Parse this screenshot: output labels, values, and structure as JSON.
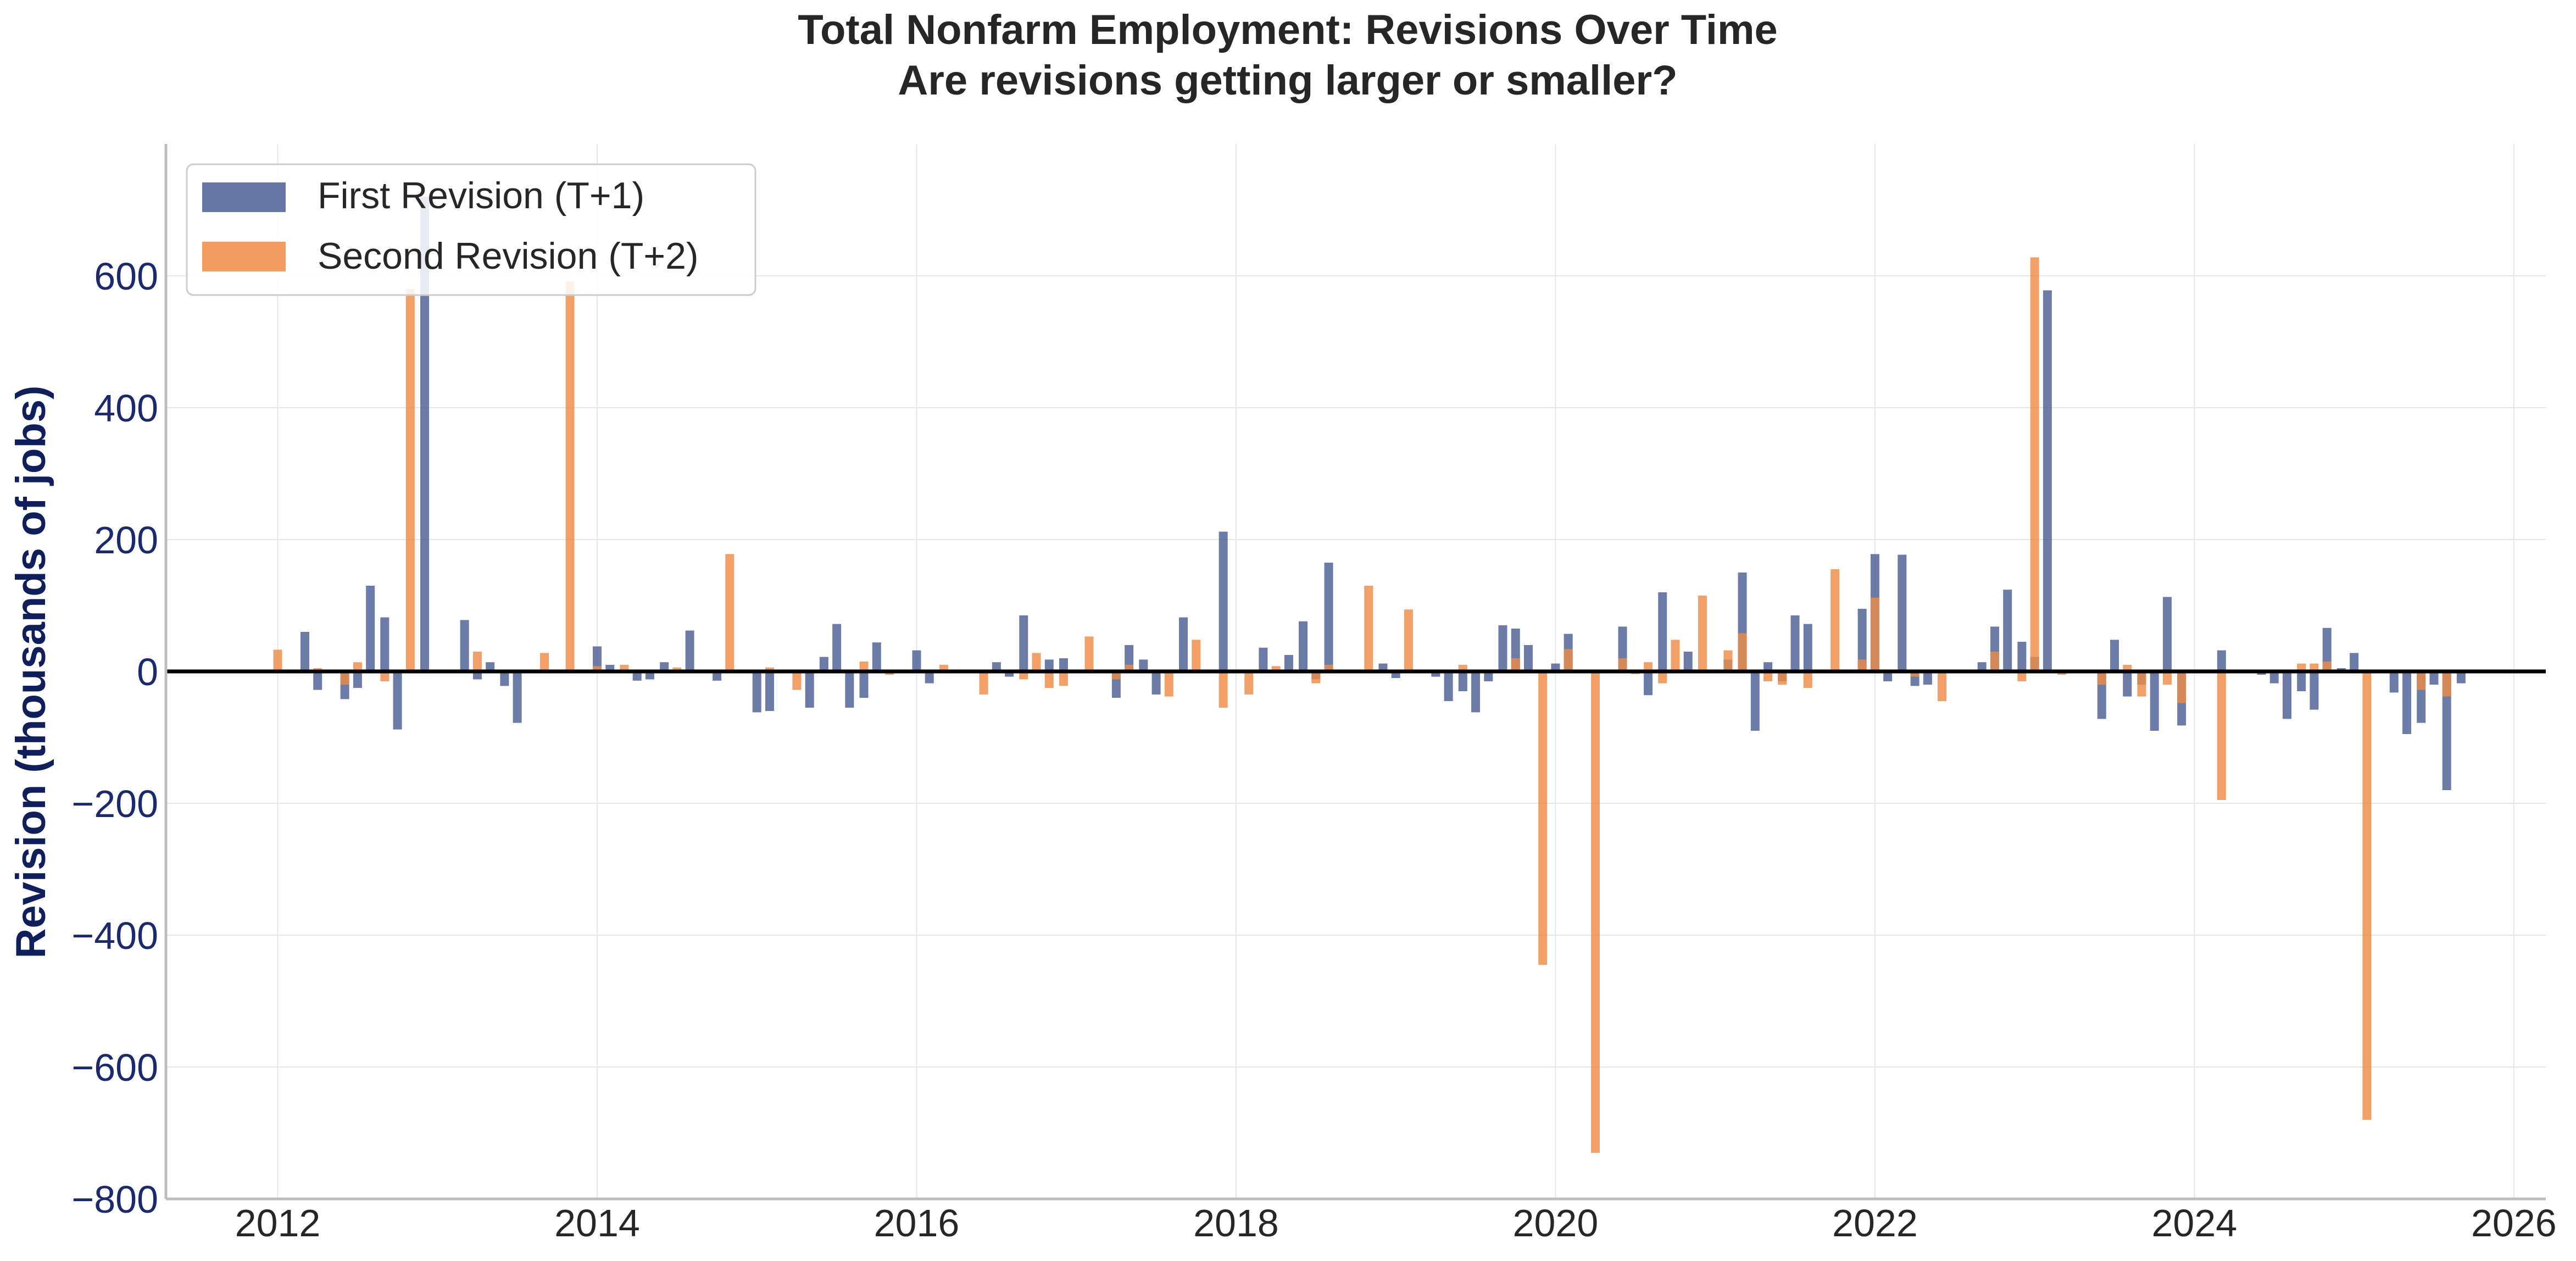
{
  "chart_data": {
    "type": "bar",
    "title": "Total Nonfarm Employment: Revisions Over Time",
    "subtitle": "Are revisions getting larger or smaller?",
    "xlabel": "",
    "ylabel": "Revision (thousands of jobs)",
    "xlim": [
      2011.3,
      2026.2
    ],
    "ylim": [
      -800,
      800
    ],
    "xticks": [
      2012,
      2014,
      2016,
      2018,
      2020,
      2022,
      2024,
      2026
    ],
    "yticks": [
      -800,
      -600,
      -400,
      -200,
      0,
      200,
      400,
      600
    ],
    "ytick_labels": [
      "−800",
      "−600",
      "−400",
      "−200",
      "0",
      "200",
      "400",
      "600"
    ],
    "grid": true,
    "zero_line": true,
    "legend_position": "top-left",
    "colors": {
      "first": "#4c5f93",
      "second": "#ee8c47",
      "axis_text": "#1a2a6c",
      "zero_line": "#000000"
    },
    "series": [
      {
        "name": "First Revision (T+1)",
        "points": [
          [
            2012.17,
            60
          ],
          [
            2012.25,
            -28
          ],
          [
            2012.42,
            -42
          ],
          [
            2012.5,
            -25
          ],
          [
            2012.58,
            130
          ],
          [
            2012.67,
            82
          ],
          [
            2012.75,
            -88
          ],
          [
            2012.92,
            720
          ],
          [
            2013.17,
            78
          ],
          [
            2013.25,
            -12
          ],
          [
            2013.33,
            14
          ],
          [
            2013.42,
            -22
          ],
          [
            2013.5,
            -78
          ],
          [
            2014.0,
            38
          ],
          [
            2014.08,
            10
          ],
          [
            2014.25,
            -14
          ],
          [
            2014.33,
            -12
          ],
          [
            2014.42,
            14
          ],
          [
            2014.58,
            62
          ],
          [
            2014.75,
            -14
          ],
          [
            2015.0,
            -62
          ],
          [
            2015.08,
            -60
          ],
          [
            2015.33,
            -55
          ],
          [
            2015.42,
            22
          ],
          [
            2015.5,
            72
          ],
          [
            2015.58,
            -55
          ],
          [
            2015.67,
            -40
          ],
          [
            2015.75,
            44
          ],
          [
            2016.0,
            32
          ],
          [
            2016.08,
            -18
          ],
          [
            2016.5,
            14
          ],
          [
            2016.58,
            -8
          ],
          [
            2016.67,
            85
          ],
          [
            2016.83,
            18
          ],
          [
            2016.92,
            20
          ],
          [
            2017.25,
            -40
          ],
          [
            2017.33,
            40
          ],
          [
            2017.42,
            18
          ],
          [
            2017.5,
            -35
          ],
          [
            2017.67,
            82
          ],
          [
            2017.92,
            212
          ],
          [
            2018.17,
            36
          ],
          [
            2018.33,
            25
          ],
          [
            2018.42,
            76
          ],
          [
            2018.5,
            -12
          ],
          [
            2018.58,
            165
          ],
          [
            2018.92,
            12
          ],
          [
            2019.0,
            -10
          ],
          [
            2019.25,
            -8
          ],
          [
            2019.33,
            -45
          ],
          [
            2019.42,
            -30
          ],
          [
            2019.5,
            -62
          ],
          [
            2019.58,
            -15
          ],
          [
            2019.67,
            70
          ],
          [
            2019.75,
            65
          ],
          [
            2019.83,
            40
          ],
          [
            2020.0,
            12
          ],
          [
            2020.08,
            57
          ],
          [
            2020.42,
            68
          ],
          [
            2020.58,
            -36
          ],
          [
            2020.67,
            120
          ],
          [
            2020.83,
            30
          ],
          [
            2021.08,
            18
          ],
          [
            2021.17,
            150
          ],
          [
            2021.25,
            -90
          ],
          [
            2021.33,
            14
          ],
          [
            2021.42,
            -15
          ],
          [
            2021.5,
            85
          ],
          [
            2021.58,
            72
          ],
          [
            2021.92,
            95
          ],
          [
            2022.0,
            178
          ],
          [
            2022.08,
            -15
          ],
          [
            2022.17,
            177
          ],
          [
            2022.25,
            -22
          ],
          [
            2022.33,
            -20
          ],
          [
            2022.67,
            14
          ],
          [
            2022.75,
            68
          ],
          [
            2022.83,
            124
          ],
          [
            2022.92,
            45
          ],
          [
            2023.0,
            22
          ],
          [
            2023.08,
            578
          ],
          [
            2023.42,
            -72
          ],
          [
            2023.5,
            48
          ],
          [
            2023.58,
            -38
          ],
          [
            2023.67,
            -20
          ],
          [
            2023.75,
            -90
          ],
          [
            2023.83,
            113
          ],
          [
            2023.92,
            -82
          ],
          [
            2024.17,
            32
          ],
          [
            2024.42,
            -5
          ],
          [
            2024.5,
            -18
          ],
          [
            2024.58,
            -72
          ],
          [
            2024.67,
            -30
          ],
          [
            2024.75,
            -58
          ],
          [
            2024.83,
            66
          ],
          [
            2024.92,
            5
          ],
          [
            2025.0,
            28
          ],
          [
            2025.25,
            -32
          ],
          [
            2025.33,
            -95
          ],
          [
            2025.42,
            -78
          ],
          [
            2025.5,
            -20
          ],
          [
            2025.58,
            -180
          ],
          [
            2025.67,
            -18
          ]
        ]
      },
      {
        "name": "Second Revision (T+2)",
        "points": [
          [
            2012.0,
            33
          ],
          [
            2012.25,
            5
          ],
          [
            2012.42,
            -20
          ],
          [
            2012.5,
            14
          ],
          [
            2012.67,
            -15
          ],
          [
            2012.83,
            580
          ],
          [
            2013.25,
            30
          ],
          [
            2013.67,
            28
          ],
          [
            2013.83,
            592
          ],
          [
            2014.0,
            8
          ],
          [
            2014.17,
            10
          ],
          [
            2014.5,
            6
          ],
          [
            2014.83,
            178
          ],
          [
            2015.08,
            6
          ],
          [
            2015.25,
            -28
          ],
          [
            2015.67,
            15
          ],
          [
            2015.83,
            -5
          ],
          [
            2016.17,
            10
          ],
          [
            2016.42,
            -35
          ],
          [
            2016.67,
            -12
          ],
          [
            2016.75,
            28
          ],
          [
            2016.83,
            -25
          ],
          [
            2016.92,
            -22
          ],
          [
            2017.08,
            53
          ],
          [
            2017.25,
            -12
          ],
          [
            2017.33,
            10
          ],
          [
            2017.58,
            -38
          ],
          [
            2017.75,
            48
          ],
          [
            2017.92,
            -55
          ],
          [
            2018.08,
            -35
          ],
          [
            2018.25,
            8
          ],
          [
            2018.5,
            -18
          ],
          [
            2018.58,
            10
          ],
          [
            2018.83,
            130
          ],
          [
            2019.08,
            94
          ],
          [
            2019.42,
            10
          ],
          [
            2019.75,
            20
          ],
          [
            2019.92,
            -445
          ],
          [
            2020.08,
            34
          ],
          [
            2020.25,
            -730
          ],
          [
            2020.42,
            20
          ],
          [
            2020.5,
            -4
          ],
          [
            2020.58,
            14
          ],
          [
            2020.67,
            -18
          ],
          [
            2020.75,
            48
          ],
          [
            2020.92,
            115
          ],
          [
            2021.08,
            32
          ],
          [
            2021.17,
            58
          ],
          [
            2021.33,
            -15
          ],
          [
            2021.42,
            -20
          ],
          [
            2021.58,
            -25
          ],
          [
            2021.75,
            155
          ],
          [
            2021.92,
            18
          ],
          [
            2022.0,
            112
          ],
          [
            2022.25,
            -8
          ],
          [
            2022.42,
            -45
          ],
          [
            2022.75,
            30
          ],
          [
            2022.92,
            -15
          ],
          [
            2023.0,
            628
          ],
          [
            2023.17,
            -5
          ],
          [
            2023.42,
            -20
          ],
          [
            2023.58,
            10
          ],
          [
            2023.67,
            -38
          ],
          [
            2023.83,
            -20
          ],
          [
            2023.92,
            -48
          ],
          [
            2024.17,
            -195
          ],
          [
            2024.67,
            12
          ],
          [
            2024.75,
            12
          ],
          [
            2024.83,
            15
          ],
          [
            2025.08,
            -680
          ],
          [
            2025.42,
            -28
          ],
          [
            2025.58,
            -38
          ]
        ]
      }
    ]
  }
}
